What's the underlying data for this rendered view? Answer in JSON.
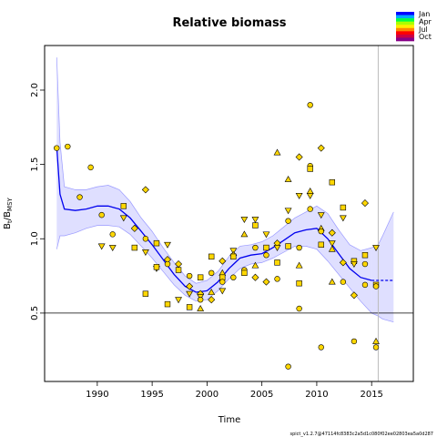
{
  "chart_data": {
    "type": "scatter",
    "title": "Relative biomass",
    "xlabel": "Time",
    "ylabel": "B",
    "ylabel_sub1": "t",
    "ylabel_sep": "/B",
    "ylabel_sub2": "MSY",
    "footnote": "spict_v1.2.7@47114fc8383c2a5d1c080f02ee02803ea5a0d287",
    "xlim": [
      1985.2,
      2018.8
    ],
    "ylim": [
      0.04,
      2.3
    ],
    "xticks": [
      1990,
      1995,
      2000,
      2005,
      2010,
      2015
    ],
    "yticks": [
      0.5,
      1.0,
      1.5,
      2.0
    ],
    "xtick_labels": [
      "1990",
      "1995",
      "2000",
      "2005",
      "2010",
      "2015"
    ],
    "ytick_labels": [
      "0.5",
      "1.0",
      "1.5",
      "2.0"
    ],
    "reference_line_y": 1.0,
    "reference_line_y_color": "#000000",
    "bmsy_line_y": 0.5,
    "vertical_line_x": 2015.6,
    "legend": {
      "placement": "top-right",
      "entries": [
        "Jan",
        "Apr",
        "Jul",
        "Oct"
      ],
      "gradient": [
        "#0000ff",
        "#00aaff",
        "#00ff44",
        "#aaff00",
        "#ffee00",
        "#ff8800",
        "#ff0000",
        "#cc0044",
        "#880088"
      ]
    },
    "series": [
      {
        "kind": "estimate",
        "color": "#0000ee",
        "x": [
          1986.3,
          1986.6,
          1987,
          1988,
          1989,
          1990,
          1991,
          1992,
          1993,
          1994,
          1995,
          1996,
          1997,
          1998,
          1999,
          2000,
          2001,
          2002,
          2003,
          2004,
          2005,
          2006,
          2007,
          2008,
          2009,
          2010,
          2011,
          2012,
          2013,
          2014,
          2015
        ],
        "y": [
          1.62,
          1.3,
          1.2,
          1.19,
          1.2,
          1.22,
          1.22,
          1.2,
          1.14,
          1.05,
          0.96,
          0.86,
          0.76,
          0.68,
          0.64,
          0.65,
          0.71,
          0.8,
          0.87,
          0.89,
          0.9,
          0.94,
          0.99,
          1.04,
          1.06,
          1.07,
          1.0,
          0.9,
          0.8,
          0.74,
          0.72
        ],
        "lower": [
          0.93,
          1.02,
          1.02,
          1.04,
          1.07,
          1.09,
          1.09,
          1.08,
          1.03,
          0.95,
          0.87,
          0.78,
          0.69,
          0.62,
          0.58,
          0.59,
          0.65,
          0.73,
          0.8,
          0.83,
          0.84,
          0.87,
          0.91,
          0.95,
          0.95,
          0.93,
          0.85,
          0.76,
          0.67,
          0.58,
          0.5
        ],
        "upper": [
          2.22,
          1.65,
          1.35,
          1.33,
          1.33,
          1.35,
          1.36,
          1.33,
          1.25,
          1.14,
          1.05,
          0.94,
          0.84,
          0.75,
          0.7,
          0.72,
          0.78,
          0.88,
          0.95,
          0.96,
          0.98,
          1.02,
          1.08,
          1.14,
          1.18,
          1.22,
          1.17,
          1.06,
          0.96,
          0.92,
          0.94
        ]
      },
      {
        "kind": "prediction",
        "color": "#0000ee",
        "x": [
          2015,
          2015.6,
          2016,
          2016.5,
          2017
        ],
        "y": [
          0.72,
          0.72,
          0.72,
          0.72,
          0.72
        ],
        "lower": [
          0.5,
          0.48,
          0.46,
          0.45,
          0.44
        ],
        "upper": [
          0.94,
          0.96,
          1.02,
          1.1,
          1.18
        ]
      }
    ],
    "points_color": "#ffd700",
    "points": [
      {
        "x": 1986.3,
        "y": 1.61,
        "m": "circle"
      },
      {
        "x": 1987.3,
        "y": 1.62,
        "m": "circle"
      },
      {
        "x": 1988.4,
        "y": 1.28,
        "m": "circle"
      },
      {
        "x": 1989.4,
        "y": 1.48,
        "m": "circle"
      },
      {
        "x": 1990.4,
        "y": 1.16,
        "m": "circle"
      },
      {
        "x": 1990.4,
        "y": 0.95,
        "m": "tri-down"
      },
      {
        "x": 1991.4,
        "y": 1.03,
        "m": "circle"
      },
      {
        "x": 1991.4,
        "y": 0.94,
        "m": "tri-down"
      },
      {
        "x": 1992.4,
        "y": 1.22,
        "m": "square"
      },
      {
        "x": 1992.4,
        "y": 1.14,
        "m": "tri-down"
      },
      {
        "x": 1993.4,
        "y": 1.07,
        "m": "diamond"
      },
      {
        "x": 1993.4,
        "y": 0.94,
        "m": "square"
      },
      {
        "x": 1994.4,
        "y": 1.33,
        "m": "diamond"
      },
      {
        "x": 1994.4,
        "y": 1.0,
        "m": "circle"
      },
      {
        "x": 1994.4,
        "y": 0.91,
        "m": "tri-down"
      },
      {
        "x": 1994.4,
        "y": 0.63,
        "m": "square"
      },
      {
        "x": 1995.4,
        "y": 0.97,
        "m": "square"
      },
      {
        "x": 1995.4,
        "y": 0.8,
        "m": "tri-down"
      },
      {
        "x": 1995.4,
        "y": 0.81,
        "m": "square"
      },
      {
        "x": 1996.4,
        "y": 0.96,
        "m": "tri-down"
      },
      {
        "x": 1996.4,
        "y": 0.86,
        "m": "diamond"
      },
      {
        "x": 1996.4,
        "y": 0.83,
        "m": "circle"
      },
      {
        "x": 1996.4,
        "y": 0.56,
        "m": "square"
      },
      {
        "x": 1997.4,
        "y": 0.83,
        "m": "diamond"
      },
      {
        "x": 1997.4,
        "y": 0.79,
        "m": "square"
      },
      {
        "x": 1997.4,
        "y": 0.59,
        "m": "tri-down"
      },
      {
        "x": 1998.4,
        "y": 0.75,
        "m": "circle"
      },
      {
        "x": 1998.4,
        "y": 0.68,
        "m": "diamond"
      },
      {
        "x": 1998.4,
        "y": 0.63,
        "m": "tri-down"
      },
      {
        "x": 1998.4,
        "y": 0.54,
        "m": "square"
      },
      {
        "x": 1999.4,
        "y": 0.74,
        "m": "square"
      },
      {
        "x": 1999.4,
        "y": 0.63,
        "m": "diamond"
      },
      {
        "x": 1999.4,
        "y": 0.61,
        "m": "tri-down"
      },
      {
        "x": 1999.4,
        "y": 0.53,
        "m": "tri-up"
      },
      {
        "x": 1999.4,
        "y": 0.59,
        "m": "circle"
      },
      {
        "x": 2000.4,
        "y": 0.88,
        "m": "square"
      },
      {
        "x": 2000.4,
        "y": 0.77,
        "m": "circle"
      },
      {
        "x": 2000.4,
        "y": 0.64,
        "m": "tri-up"
      },
      {
        "x": 2000.4,
        "y": 0.59,
        "m": "diamond"
      },
      {
        "x": 2001.4,
        "y": 0.85,
        "m": "diamond"
      },
      {
        "x": 2001.4,
        "y": 0.77,
        "m": "tri-up"
      },
      {
        "x": 2001.4,
        "y": 0.74,
        "m": "square"
      },
      {
        "x": 2001.4,
        "y": 0.71,
        "m": "circle"
      },
      {
        "x": 2001.4,
        "y": 0.65,
        "m": "tri-down"
      },
      {
        "x": 2002.4,
        "y": 0.92,
        "m": "tri-down"
      },
      {
        "x": 2002.4,
        "y": 0.89,
        "m": "diamond"
      },
      {
        "x": 2002.4,
        "y": 0.88,
        "m": "square"
      },
      {
        "x": 2002.4,
        "y": 0.74,
        "m": "circle"
      },
      {
        "x": 2003.4,
        "y": 1.13,
        "m": "tri-down"
      },
      {
        "x": 2003.4,
        "y": 1.03,
        "m": "tri-up"
      },
      {
        "x": 2003.4,
        "y": 0.79,
        "m": "circle"
      },
      {
        "x": 2003.4,
        "y": 0.77,
        "m": "square"
      },
      {
        "x": 2004.4,
        "y": 1.13,
        "m": "tri-down"
      },
      {
        "x": 2004.4,
        "y": 1.09,
        "m": "square"
      },
      {
        "x": 2004.4,
        "y": 0.94,
        "m": "circle"
      },
      {
        "x": 2004.4,
        "y": 0.82,
        "m": "tri-up"
      },
      {
        "x": 2004.4,
        "y": 0.74,
        "m": "diamond"
      },
      {
        "x": 2005.4,
        "y": 1.03,
        "m": "tri-down"
      },
      {
        "x": 2005.4,
        "y": 0.94,
        "m": "square"
      },
      {
        "x": 2005.4,
        "y": 0.89,
        "m": "circle"
      },
      {
        "x": 2005.4,
        "y": 0.71,
        "m": "diamond"
      },
      {
        "x": 2006.4,
        "y": 1.58,
        "m": "tri-up"
      },
      {
        "x": 2006.4,
        "y": 0.97,
        "m": "diamond"
      },
      {
        "x": 2006.4,
        "y": 0.94,
        "m": "tri-down"
      },
      {
        "x": 2006.4,
        "y": 0.84,
        "m": "square"
      },
      {
        "x": 2006.4,
        "y": 0.73,
        "m": "circle"
      },
      {
        "x": 2007.4,
        "y": 1.4,
        "m": "tri-up"
      },
      {
        "x": 2007.4,
        "y": 1.19,
        "m": "tri-down"
      },
      {
        "x": 2007.4,
        "y": 1.12,
        "m": "circle"
      },
      {
        "x": 2007.4,
        "y": 0.95,
        "m": "square"
      },
      {
        "x": 2007.4,
        "y": 0.14,
        "m": "circle"
      },
      {
        "x": 2008.4,
        "y": 1.55,
        "m": "diamond"
      },
      {
        "x": 2008.4,
        "y": 1.29,
        "m": "tri-down"
      },
      {
        "x": 2008.4,
        "y": 0.94,
        "m": "circle"
      },
      {
        "x": 2008.4,
        "y": 0.82,
        "m": "tri-up"
      },
      {
        "x": 2008.4,
        "y": 0.7,
        "m": "square"
      },
      {
        "x": 2008.4,
        "y": 0.53,
        "m": "circle"
      },
      {
        "x": 2009.4,
        "y": 1.9,
        "m": "circle"
      },
      {
        "x": 2009.4,
        "y": 1.49,
        "m": "circle"
      },
      {
        "x": 2009.4,
        "y": 1.47,
        "m": "square"
      },
      {
        "x": 2009.4,
        "y": 1.32,
        "m": "tri-up"
      },
      {
        "x": 2009.4,
        "y": 1.29,
        "m": "tri-down"
      },
      {
        "x": 2009.4,
        "y": 1.2,
        "m": "circle"
      },
      {
        "x": 2010.4,
        "y": 1.61,
        "m": "diamond"
      },
      {
        "x": 2010.4,
        "y": 1.16,
        "m": "tri-down"
      },
      {
        "x": 2010.4,
        "y": 1.07,
        "m": "tri-up"
      },
      {
        "x": 2010.4,
        "y": 1.05,
        "m": "circle"
      },
      {
        "x": 2010.4,
        "y": 0.96,
        "m": "square"
      },
      {
        "x": 2010.4,
        "y": 0.27,
        "m": "circle"
      },
      {
        "x": 2011.4,
        "y": 1.38,
        "m": "square"
      },
      {
        "x": 2011.4,
        "y": 0.97,
        "m": "tri-down"
      },
      {
        "x": 2011.4,
        "y": 0.93,
        "m": "tri-up"
      },
      {
        "x": 2011.4,
        "y": 1.04,
        "m": "diamond"
      },
      {
        "x": 2011.4,
        "y": 0.71,
        "m": "tri-up"
      },
      {
        "x": 2012.4,
        "y": 1.21,
        "m": "square"
      },
      {
        "x": 2012.4,
        "y": 1.14,
        "m": "tri-down"
      },
      {
        "x": 2012.4,
        "y": 0.84,
        "m": "diamond"
      },
      {
        "x": 2012.4,
        "y": 0.71,
        "m": "circle"
      },
      {
        "x": 2013.4,
        "y": 0.85,
        "m": "square"
      },
      {
        "x": 2013.4,
        "y": 0.83,
        "m": "tri-down"
      },
      {
        "x": 2013.4,
        "y": 0.62,
        "m": "diamond"
      },
      {
        "x": 2013.4,
        "y": 0.31,
        "m": "circle"
      },
      {
        "x": 2014.4,
        "y": 1.24,
        "m": "diamond"
      },
      {
        "x": 2014.4,
        "y": 0.89,
        "m": "square"
      },
      {
        "x": 2014.4,
        "y": 0.83,
        "m": "circle"
      },
      {
        "x": 2014.4,
        "y": 0.69,
        "m": "circle"
      },
      {
        "x": 2015.4,
        "y": 0.94,
        "m": "tri-down"
      },
      {
        "x": 2015.4,
        "y": 0.69,
        "m": "square"
      },
      {
        "x": 2015.4,
        "y": 0.68,
        "m": "circle"
      },
      {
        "x": 2015.4,
        "y": 0.31,
        "m": "tri-up"
      },
      {
        "x": 2015.4,
        "y": 0.27,
        "m": "circle"
      }
    ]
  }
}
